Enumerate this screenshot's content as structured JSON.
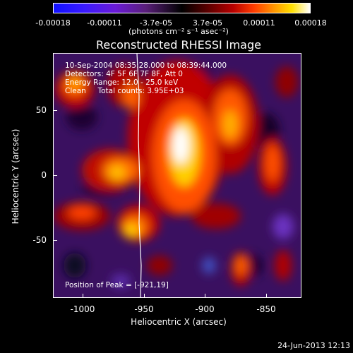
{
  "colorbar": {
    "ticks": [
      "-0.00018",
      "-0.00011",
      "-3.7e-05",
      "3.7e-05",
      "0.00011",
      "0.00018"
    ],
    "units": "(photons cm⁻² s⁻¹ asec⁻²)"
  },
  "title": "Reconstructed RHESSI Image",
  "info": {
    "time": "10-Sep-2004 08:35:28.000 to 08:39:44.000",
    "detectors": "Detectors: 4F 5F 6F 7F 8F, Att 0",
    "energy": "Energy Range: 12.0 - 25.0 keV",
    "clean": "Clean     Total counts: 3.95E+03",
    "peak": "Position of Peak = [-921,19]"
  },
  "axes": {
    "xlabel": "Heliocentric X (arcsec)",
    "ylabel": "Heliocentric Y (arcsec)",
    "xticks": [
      "-1000",
      "-950",
      "-900",
      "-850"
    ],
    "yticks": [
      "50",
      "0",
      "-50"
    ]
  },
  "timestamp": "24-Jun-2013 12:13"
}
